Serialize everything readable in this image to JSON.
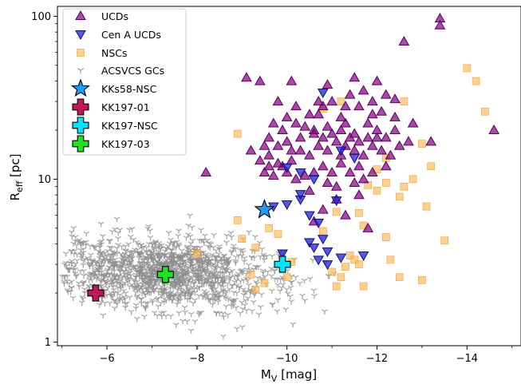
{
  "chart_data": {
    "type": "scatter",
    "xlabel": "M",
    "xlabel_sub": "V",
    "xlabel_unit": " [mag]",
    "ylabel": "R",
    "ylabel_sub": "eff",
    "ylabel_unit": " [pc]",
    "xlim": [
      -4.9,
      -15.2
    ],
    "ylim": [
      0.95,
      115
    ],
    "yscale": "log",
    "x_ticks": [
      -6,
      -8,
      -10,
      -12,
      -14
    ],
    "x_tick_labels": [
      "−6",
      "−8",
      "−10",
      "−12",
      "−14"
    ],
    "y_ticks": [
      1,
      10,
      100
    ],
    "y_tick_labels": [
      "1",
      "10",
      "100"
    ],
    "legend_position": "top-left",
    "colors": {
      "ucd": "#800080",
      "cena": "#1f1fd6",
      "nsc": "#ffb347",
      "gc": "#8c8c8c",
      "kks58": "#1e9bff",
      "kk197_01": "#c2185b",
      "kk197_nsc": "#00e5ff",
      "kk197_03": "#22e022"
    },
    "series": [
      {
        "name": "UCDs",
        "marker": "triangle-up",
        "points": [
          [
            -8.2,
            11
          ],
          [
            -9.1,
            42
          ],
          [
            -9.4,
            40
          ],
          [
            -10.1,
            40
          ],
          [
            -9.8,
            30
          ],
          [
            -10.2,
            28
          ],
          [
            -10.7,
            25
          ],
          [
            -11.3,
            22
          ],
          [
            -11.6,
            28
          ],
          [
            -11.9,
            30
          ],
          [
            -12.1,
            26
          ],
          [
            -12.2,
            33
          ],
          [
            -12.4,
            31
          ],
          [
            -12.6,
            70
          ],
          [
            -13.4,
            97
          ],
          [
            -13.4,
            88
          ],
          [
            -14.6,
            20
          ],
          [
            -13.2,
            17
          ],
          [
            -12.5,
            16
          ],
          [
            -12.8,
            22
          ],
          [
            -12.4,
            20
          ],
          [
            -12.0,
            18
          ],
          [
            -11.8,
            22
          ],
          [
            -11.5,
            19
          ],
          [
            -11.2,
            24
          ],
          [
            -10.9,
            21
          ],
          [
            -10.6,
            20
          ],
          [
            -10.3,
            18
          ],
          [
            -10.0,
            17
          ],
          [
            -9.8,
            16
          ],
          [
            -9.6,
            14
          ],
          [
            -9.4,
            13
          ],
          [
            -9.5,
            11
          ],
          [
            -9.7,
            10.5
          ],
          [
            -9.9,
            12
          ],
          [
            -10.1,
            13
          ],
          [
            -10.3,
            15
          ],
          [
            -10.5,
            14
          ],
          [
            -10.7,
            16
          ],
          [
            -10.9,
            15
          ],
          [
            -11.1,
            17
          ],
          [
            -11.3,
            16
          ],
          [
            -11.5,
            15
          ],
          [
            -11.7,
            14
          ],
          [
            -11.9,
            16
          ],
          [
            -12.1,
            15
          ],
          [
            -12.3,
            14
          ],
          [
            -11.6,
            12
          ],
          [
            -11.4,
            11
          ],
          [
            -11.2,
            12.5
          ],
          [
            -11.0,
            11
          ],
          [
            -10.8,
            12
          ],
          [
            -10.6,
            11
          ],
          [
            -10.4,
            10.5
          ],
          [
            -10.2,
            10
          ],
          [
            -10.0,
            11
          ],
          [
            -9.8,
            12.5
          ],
          [
            -9.6,
            12
          ],
          [
            -10.5,
            25
          ],
          [
            -10.8,
            28
          ],
          [
            -11.0,
            30
          ],
          [
            -11.4,
            33
          ],
          [
            -11.7,
            35
          ],
          [
            -12.0,
            40
          ],
          [
            -11.5,
            42
          ],
          [
            -10.9,
            38
          ],
          [
            -9.7,
            22
          ],
          [
            -9.9,
            20
          ],
          [
            -10.2,
            22
          ],
          [
            -10.4,
            21
          ],
          [
            -10.6,
            19
          ],
          [
            -10.8,
            18
          ],
          [
            -11.0,
            19
          ],
          [
            -11.2,
            20
          ],
          [
            -11.4,
            18
          ],
          [
            -11.6,
            17
          ],
          [
            -11.8,
            18
          ],
          [
            -12.0,
            20
          ],
          [
            -12.2,
            18
          ],
          [
            -12.2,
            12
          ],
          [
            -11.9,
            11
          ],
          [
            -11.7,
            10
          ],
          [
            -11.5,
            9.5
          ],
          [
            -11.1,
            9.0
          ],
          [
            -10.9,
            9.5
          ],
          [
            -10.5,
            8.5
          ],
          [
            -11.2,
            14
          ],
          [
            -10.1,
            15
          ],
          [
            -9.6,
            18
          ],
          [
            -9.5,
            16
          ],
          [
            -11.1,
            7.5
          ],
          [
            -11.3,
            6.0
          ],
          [
            -11.8,
            5.0
          ],
          [
            -10.6,
            5.5
          ],
          [
            -10.8,
            6.5
          ],
          [
            -11.6,
            8.0
          ],
          [
            -12.4,
            24
          ],
          [
            -12.7,
            17
          ],
          [
            -11.9,
            25
          ],
          [
            -11.3,
            28
          ],
          [
            -10.7,
            30
          ],
          [
            -10.0,
            24
          ],
          [
            -9.2,
            15
          ]
        ]
      },
      {
        "name": "Cen A UCDs",
        "marker": "triangle-down",
        "points": [
          [
            -10.0,
            11.8
          ],
          [
            -10.3,
            11
          ],
          [
            -10.6,
            10
          ],
          [
            -10.8,
            34
          ],
          [
            -11.2,
            15
          ],
          [
            -11.5,
            13.5
          ],
          [
            -10.3,
            7.5
          ],
          [
            -10.3,
            8.1
          ],
          [
            -10.0,
            7.0
          ],
          [
            -10.5,
            6.0
          ],
          [
            -10.7,
            5.4
          ],
          [
            -11.1,
            7.4
          ],
          [
            -10.5,
            4.1
          ],
          [
            -10.6,
            3.8
          ],
          [
            -10.8,
            4.3
          ],
          [
            -11.2,
            3.3
          ],
          [
            -10.7,
            3.2
          ],
          [
            -11.7,
            3.4
          ],
          [
            -10.9,
            3.0
          ],
          [
            -9.9,
            3.5
          ],
          [
            -9.7,
            6.8
          ],
          [
            -10.9,
            3.6
          ]
        ]
      },
      {
        "name": "NSCs",
        "marker": "square",
        "points": [
          [
            -8.9,
            19
          ],
          [
            -8.0,
            3.5
          ],
          [
            -8.9,
            5.6
          ],
          [
            -9.0,
            4.3
          ],
          [
            -9.2,
            2.6
          ],
          [
            -9.3,
            3.8
          ],
          [
            -9.3,
            2.1
          ],
          [
            -9.8,
            4.6
          ],
          [
            -10.0,
            2.5
          ],
          [
            -10.1,
            3.1
          ],
          [
            -9.5,
            2.3
          ],
          [
            -9.6,
            5.0
          ],
          [
            -10.8,
            4.8
          ],
          [
            -11.0,
            2.7
          ],
          [
            -11.1,
            6.3
          ],
          [
            -11.1,
            2.2
          ],
          [
            -11.2,
            2.5
          ],
          [
            -11.3,
            2.9
          ],
          [
            -11.4,
            3.4
          ],
          [
            -11.5,
            3.2
          ],
          [
            -11.6,
            3.0
          ],
          [
            -11.7,
            2.2
          ],
          [
            -11.6,
            6.2
          ],
          [
            -11.7,
            5.2
          ],
          [
            -12.2,
            4.4
          ],
          [
            -12.3,
            3.2
          ],
          [
            -12.5,
            2.5
          ],
          [
            -12.2,
            9.5
          ],
          [
            -12.5,
            7.8
          ],
          [
            -12.6,
            9.0
          ],
          [
            -13.0,
            16.5
          ],
          [
            -13.1,
            6.8
          ],
          [
            -13.0,
            2.4
          ],
          [
            -13.2,
            12
          ],
          [
            -12.8,
            10
          ],
          [
            -12.6,
            30
          ],
          [
            -12.2,
            13.5
          ],
          [
            -12.0,
            11.5
          ],
          [
            -11.8,
            9.2
          ],
          [
            -14.0,
            48
          ],
          [
            -14.2,
            40
          ],
          [
            -14.4,
            26
          ],
          [
            -13.5,
            4.2
          ],
          [
            -12.0,
            8.5
          ],
          [
            -11.2,
            30
          ],
          [
            -10.8,
            27
          ]
        ]
      },
      {
        "name": "ACSVCS GCs",
        "marker": "tri-down",
        "cloud": true
      },
      {
        "name": "KKs58-NSC",
        "marker": "star",
        "points": [
          [
            -9.5,
            6.5
          ]
        ]
      },
      {
        "name": "KK197-01",
        "marker": "plus",
        "points": [
          [
            -5.75,
            2.0
          ]
        ]
      },
      {
        "name": "KK197-NSC",
        "marker": "plus",
        "points": [
          [
            -9.9,
            3.0
          ]
        ]
      },
      {
        "name": "KK197-03",
        "marker": "plus",
        "points": [
          [
            -7.3,
            2.6
          ]
        ]
      }
    ]
  }
}
